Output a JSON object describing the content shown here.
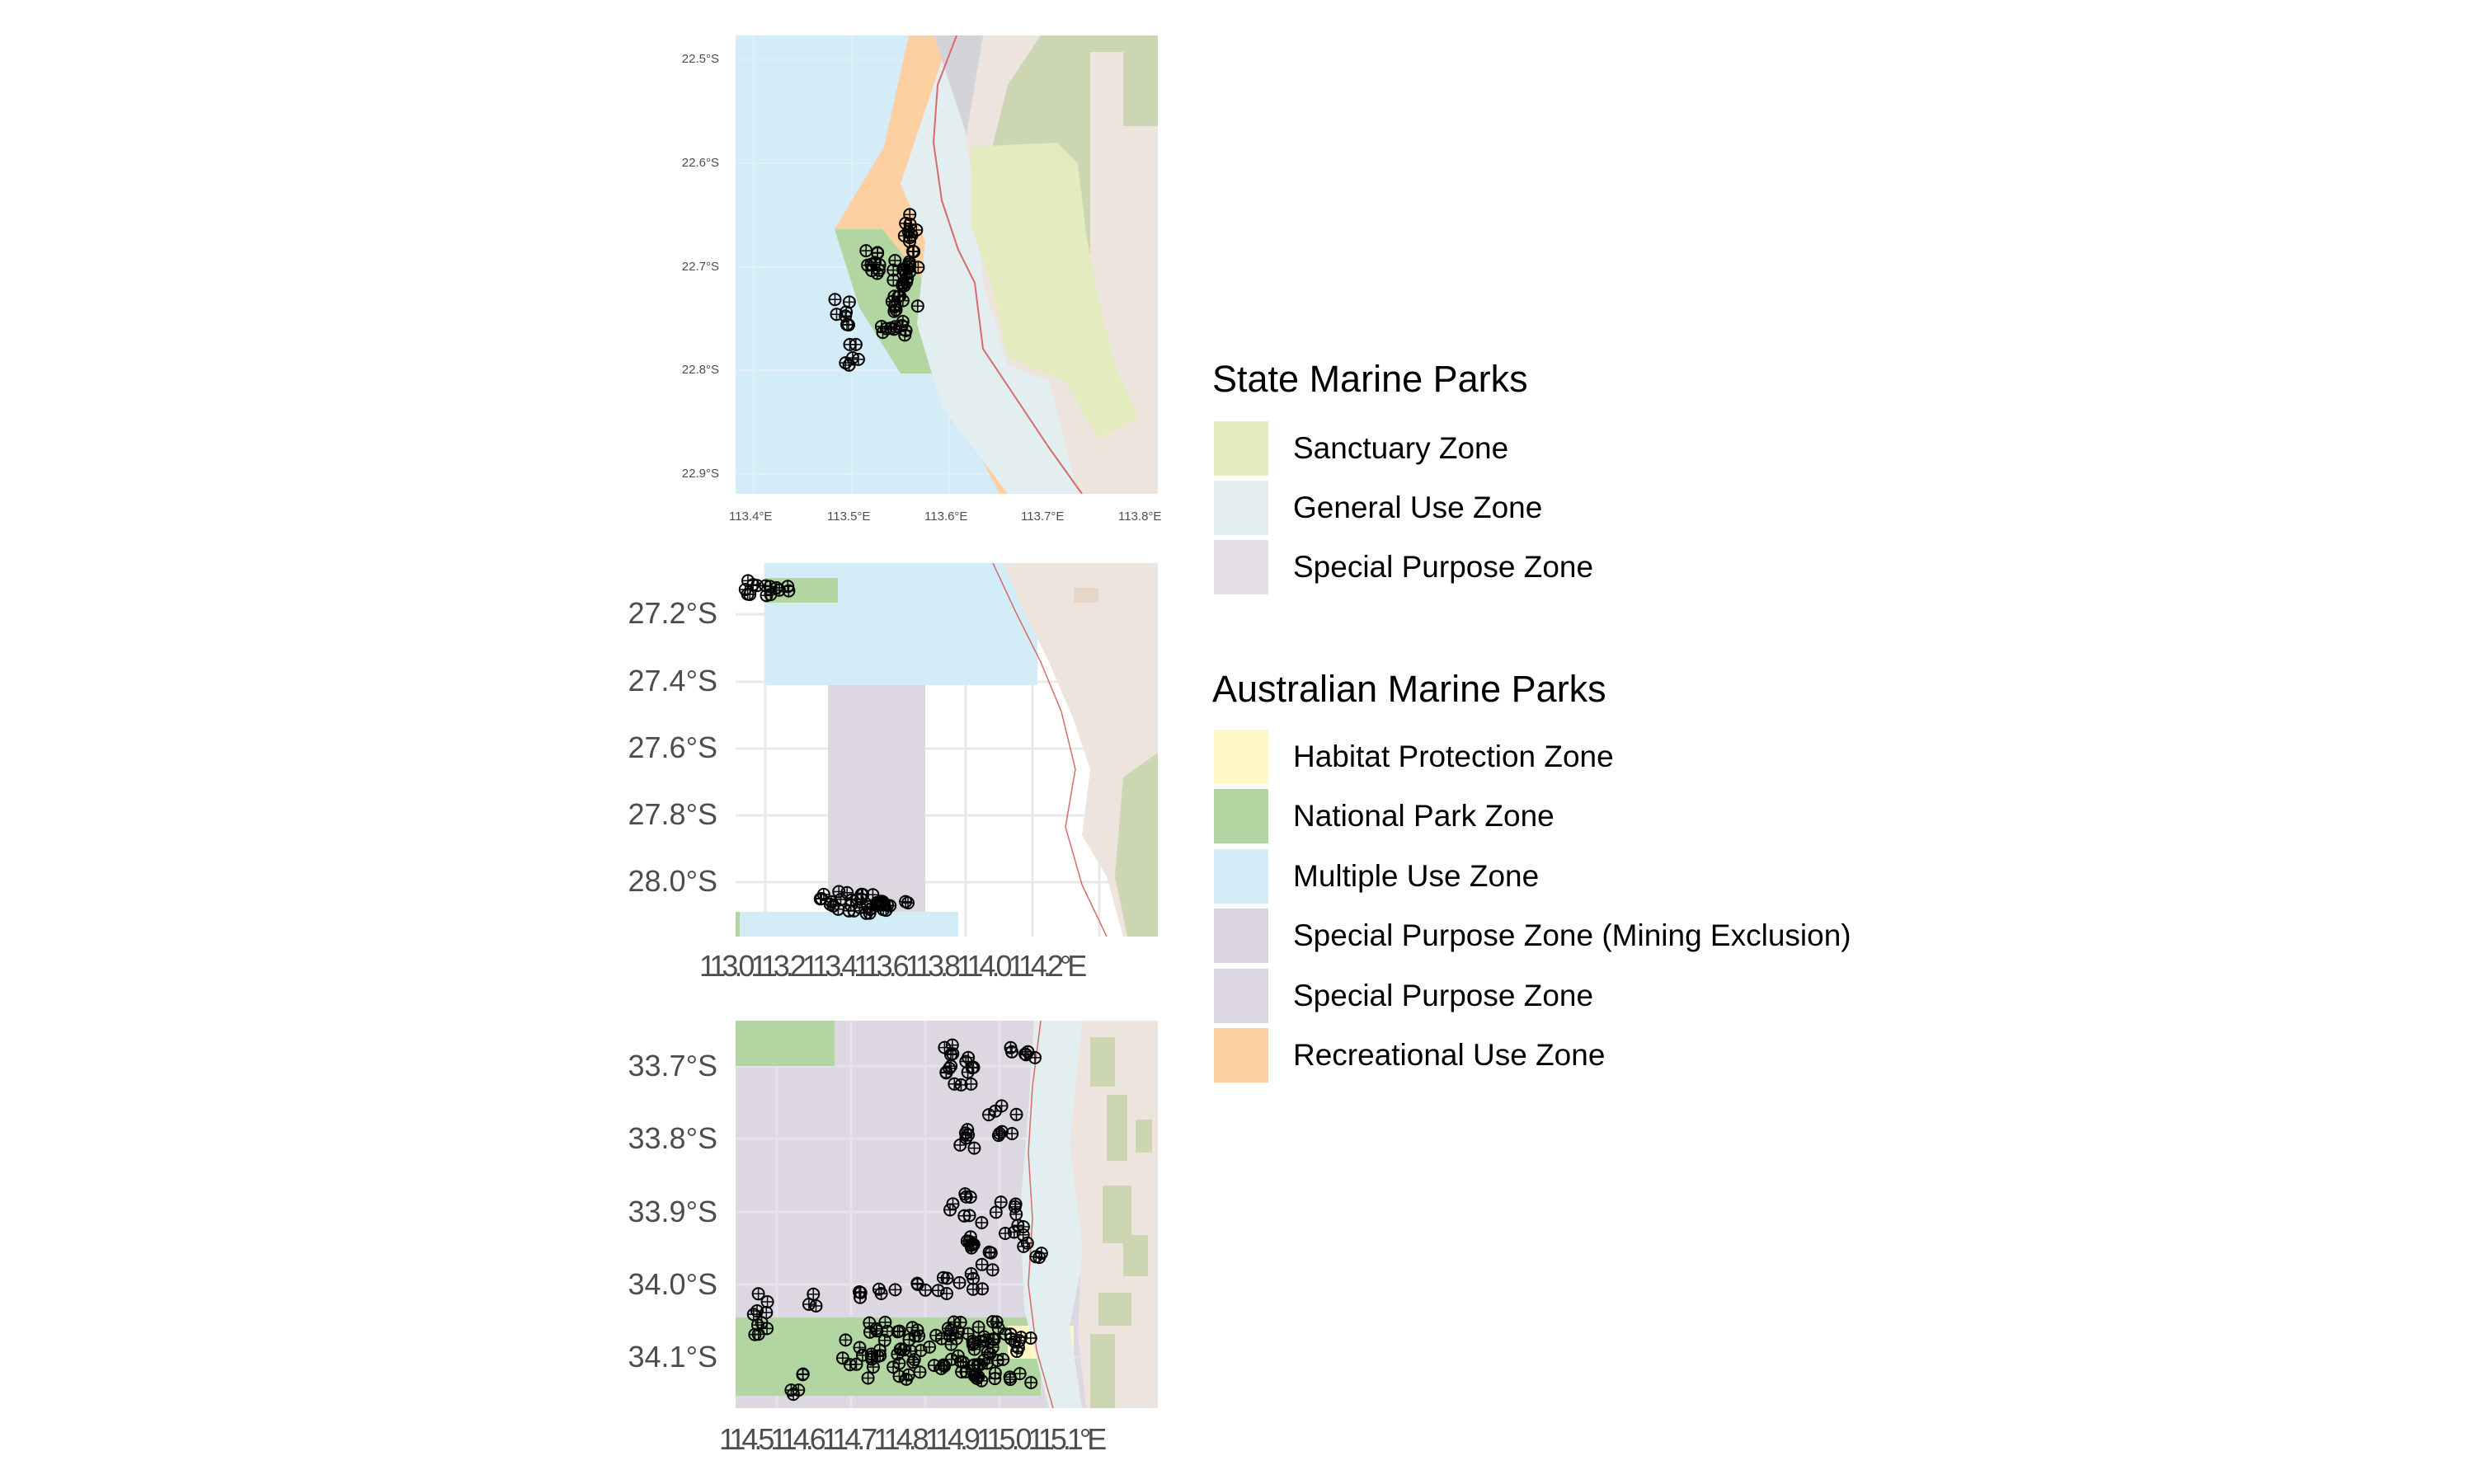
{
  "maps": [
    {
      "id": "map1",
      "y_ticks": [
        "22.5°S",
        "22.6°S",
        "22.7°S",
        "22.8°S",
        "22.9°S"
      ],
      "x_ticks": [
        "113.4°E",
        "113.5°E",
        "113.6°E",
        "113.7°E",
        "113.8°E"
      ]
    },
    {
      "id": "map2",
      "y_ticks": [
        "27.2°S",
        "27.4°S",
        "27.6°S",
        "27.8°S",
        "28.0°S"
      ],
      "x_ticks": [
        "113.0",
        "113.2",
        "113.4",
        "113.6",
        "113.8",
        "114.0",
        "114.2°E"
      ],
      "x_ticks_overlapping_text": "113.0113.2113.4113.6113.8114.0114.2°E"
    },
    {
      "id": "map3",
      "y_ticks": [
        "33.7°S",
        "33.8°S",
        "33.9°S",
        "34.0°S",
        "34.1°S"
      ],
      "x_ticks_overlapping_text": "114.5114.6114.7114.8114.9115.0115.1°E"
    }
  ],
  "legend": {
    "state": {
      "title": "State Marine Parks",
      "items": [
        {
          "label": "Sanctuary Zone",
          "color": "#e4ebbe"
        },
        {
          "label": "General Use Zone",
          "color": "#e3eef1"
        },
        {
          "label": "Special Purpose Zone",
          "color": "#e5e0e7"
        }
      ]
    },
    "australian": {
      "title": "Australian Marine Parks",
      "items": [
        {
          "label": "Habitat Protection Zone",
          "color": "#fff8c4"
        },
        {
          "label": "National Park Zone",
          "color": "#b2d6a1"
        },
        {
          "label": "Multiple Use Zone",
          "color": "#d2ecf8"
        },
        {
          "label": "Special Purpose Zone (Mining Exclusion)",
          "color": "#d9d4dd"
        },
        {
          "label": "Special Purpose Zone",
          "color": "#dcd7e0"
        },
        {
          "label": "Recreational Use Zone",
          "color": "#fdcfa1"
        }
      ]
    }
  },
  "colors": {
    "land": "#ede4dd",
    "reserve_land": "#ccd6b2",
    "coast_line": "#d96a6a",
    "grid": "#eaeaea",
    "points": "#000000"
  }
}
